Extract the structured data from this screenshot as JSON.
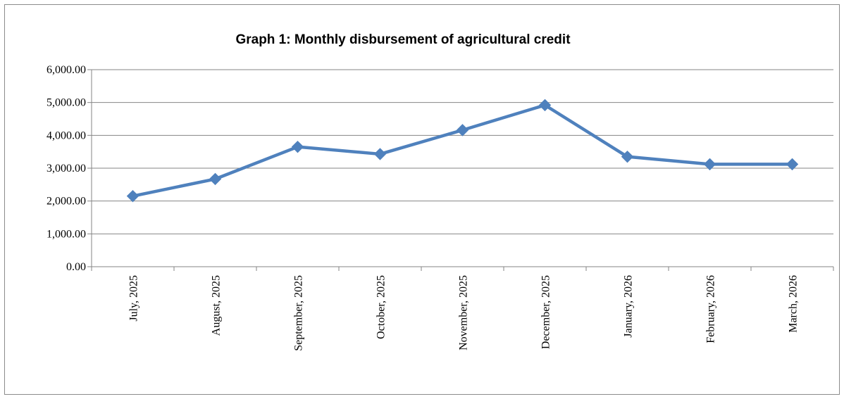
{
  "chart_data": {
    "type": "line",
    "title": "Graph  1: Monthly disbursement of agricultural credit",
    "xlabel": "",
    "ylabel": "",
    "categories": [
      "July, 2025",
      "August, 2025",
      "September, 2025",
      "October, 2025",
      "November, 2025",
      "December, 2025",
      "January, 2026",
      "February, 2026",
      "March, 2026"
    ],
    "series": [
      {
        "values": [
          2150,
          2670,
          3650,
          3430,
          4160,
          4920,
          3350,
          3120,
          3120
        ]
      }
    ],
    "ylim": [
      0,
      6000
    ],
    "y_ticks": [
      0,
      1000,
      2000,
      3000,
      4000,
      5000,
      6000
    ],
    "y_tick_labels": [
      "0.00",
      "1,000.00",
      "2,000.00",
      "3,000.00",
      "4,000.00",
      "5,000.00",
      "6,000.00"
    ],
    "grid": true,
    "legend": "none",
    "colors": {
      "line": "#4f81bd",
      "grid": "#868686",
      "axis": "#868686"
    },
    "marker": "diamond"
  }
}
